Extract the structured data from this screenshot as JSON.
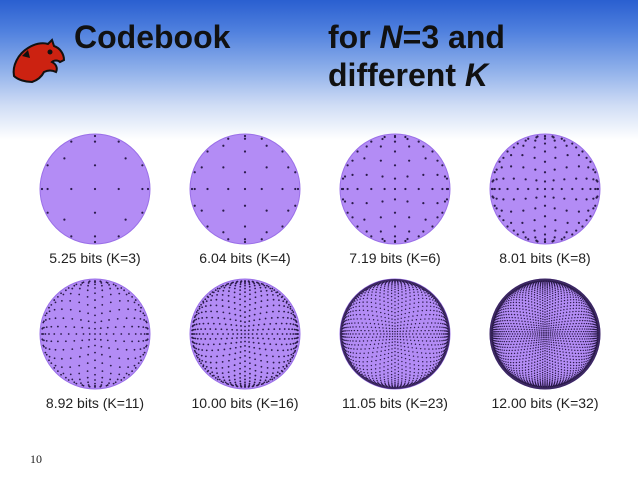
{
  "slide": {
    "title_left": "Codebook",
    "title_right_prefix": "for ",
    "title_right_var": "N",
    "title_right_suffix": "=3 and",
    "title_right_line2_prefix": "different ",
    "title_right_line2_var": "K",
    "page_number": "10"
  },
  "colors": {
    "sphere_fill": "#b38cf5",
    "sphere_edge": "#9a6fe8",
    "dot": "#2a1a4a",
    "title": "#111111",
    "header_top": "#2a5fd0"
  },
  "figures": [
    {
      "caption": "5.25 bits (K=3)",
      "k": 3
    },
    {
      "caption": "6.04 bits (K=4)",
      "k": 4
    },
    {
      "caption": "7.19 bits (K=6)",
      "k": 6
    },
    {
      "caption": "8.01 bits (K=8)",
      "k": 8
    },
    {
      "caption": "8.92 bits (K=11)",
      "k": 11
    },
    {
      "caption": "10.00 bits (K=16)",
      "k": 16
    },
    {
      "caption": "11.05 bits (K=23)",
      "k": 23
    },
    {
      "caption": "12.00 bits (K=32)",
      "k": 32
    }
  ]
}
